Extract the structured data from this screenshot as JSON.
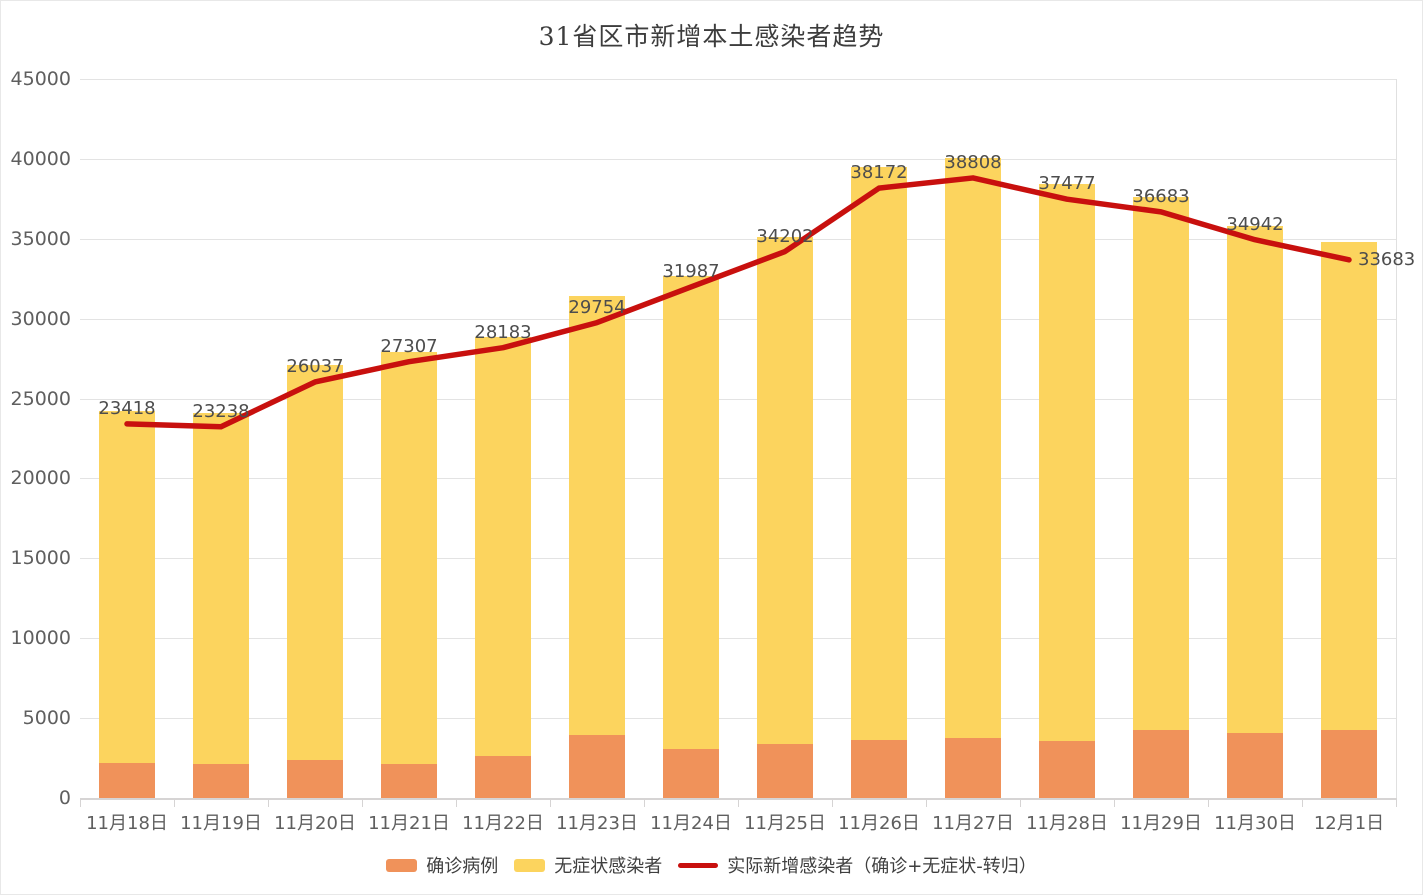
{
  "title": "31省区市新增本土感染者趋势",
  "chart_data": {
    "type": "bar",
    "subtype": "stacked-bar-with-line-overlay",
    "title": "31省区市新增本土感染者趋势",
    "categories": [
      "11月18日",
      "11月19日",
      "11月20日",
      "11月21日",
      "11月22日",
      "11月23日",
      "11月24日",
      "11月25日",
      "11月26日",
      "11月27日",
      "11月28日",
      "11月29日",
      "11月30日",
      "12月1日"
    ],
    "series": [
      {
        "name": "确诊病例",
        "type": "bar",
        "stacked": true,
        "color": "#F0925A",
        "values": [
          2204,
          2160,
          2365,
          2145,
          2641,
          3927,
          3041,
          3405,
          3648,
          3748,
          3561,
          4236,
          4080,
          4233
        ]
      },
      {
        "name": "无症状感染者",
        "type": "bar",
        "stacked": true,
        "color": "#FCD45E",
        "values": [
          22011,
          21950,
          24730,
          25754,
          26242,
          27517,
          29654,
          31709,
          35858,
          36304,
          34860,
          33376,
          31720,
          30539
        ]
      },
      {
        "name": "实际新增感染者（确诊+无症状-转归）",
        "type": "line",
        "color": "#C8100E",
        "point_labels": true,
        "values": [
          23418,
          23238,
          26037,
          27307,
          28183,
          29754,
          31987,
          34202,
          38172,
          38808,
          37477,
          36683,
          34942,
          33683
        ]
      }
    ],
    "xlabel": "",
    "ylabel": "",
    "ylim": [
      0,
      45000
    ],
    "ytick_interval": 5000,
    "yticks": [
      "0",
      "5000",
      "10000",
      "15000",
      "20000",
      "25000",
      "30000",
      "35000",
      "40000",
      "45000"
    ],
    "grid": "horizontal",
    "legend_position": "bottom"
  },
  "legend": {
    "items": [
      {
        "label": "确诊病例",
        "swatch": "bar",
        "color": "#F0925A"
      },
      {
        "label": "无症状感染者",
        "swatch": "bar",
        "color": "#FCD45E"
      },
      {
        "label": "实际新增感染者（确诊+无症状-转归）",
        "swatch": "line",
        "color": "#C8100E"
      }
    ]
  },
  "colors": {
    "confirmed_bar": "#F0925A",
    "asymptomatic_bar": "#FCD45E",
    "trend_line": "#C8100E",
    "gridline": "#E3E3E3",
    "axis": "#D6D4D4",
    "axis_label": "#5F5F5F",
    "data_label": "#4D4D4D",
    "title": "#3D3D3D",
    "background": "#FFFFFF"
  }
}
